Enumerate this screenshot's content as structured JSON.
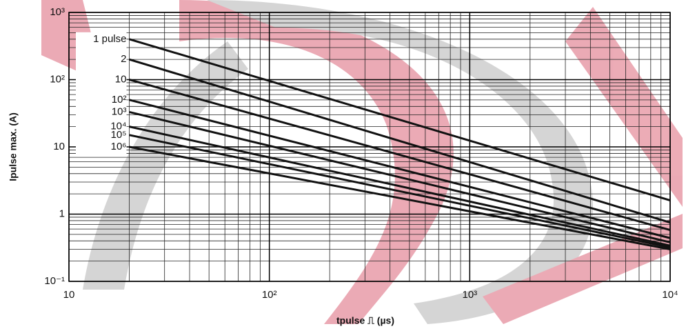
{
  "chart_data": {
    "type": "line",
    "x_label": "tpulse ⎍ (µs)",
    "y_label": "Ipulse max. (A)",
    "log_x": true,
    "log_y": true,
    "grid": true,
    "minor_grid": true,
    "xlim": [
      10,
      10000
    ],
    "ylim": [
      0.1,
      1000
    ],
    "xticks": [
      10,
      {
        "value": 100,
        "label": "10²"
      },
      {
        "value": 1000,
        "label": "10³"
      },
      {
        "value": 10000,
        "label": "10⁴"
      }
    ],
    "yticks": [
      {
        "value": 0.1,
        "label": "10⁻¹"
      },
      1,
      10,
      {
        "value": 100,
        "label": "10²"
      },
      {
        "value": 1000,
        "label": "10³"
      }
    ],
    "x": [
      20,
      10000
    ],
    "series": [
      {
        "name": "1 pulse",
        "color": "#111111",
        "values": [
          400,
          1.6
        ]
      },
      {
        "name": "2",
        "color": "#111111",
        "values": [
          200,
          0.75
        ]
      },
      {
        "name": "10",
        "color": "#111111",
        "values": [
          100,
          0.58
        ]
      },
      {
        "name": "10²",
        "color": "#111111",
        "values": [
          50,
          0.44
        ]
      },
      {
        "name": "10³",
        "color": "#111111",
        "values": [
          33,
          0.38
        ]
      },
      {
        "name": "10⁴",
        "color": "#111111",
        "values": [
          20,
          0.34
        ]
      },
      {
        "name": "10⁵",
        "color": "#111111",
        "values": [
          15,
          0.32
        ]
      },
      {
        "name": "10⁶",
        "color": "#111111",
        "values": [
          10,
          0.3
        ]
      }
    ]
  }
}
